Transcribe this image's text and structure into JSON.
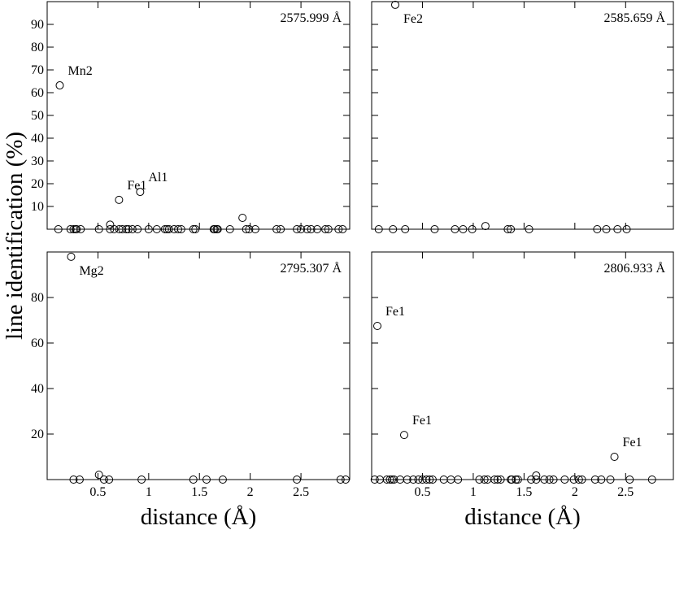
{
  "chart_data": [
    {
      "type": "scatter",
      "title": "2575.999 Å",
      "ylabel": "line identification (%)",
      "xlim": [
        0,
        2.98
      ],
      "ylim": [
        0,
        100
      ],
      "xticks": [
        0.5,
        1,
        1.5,
        2,
        2.5
      ],
      "yticks": [
        10,
        20,
        30,
        40,
        50,
        60,
        70,
        80,
        90
      ],
      "xticklabels": false,
      "yticklabels": true,
      "color": "#000000",
      "x": [
        0.124,
        0.708,
        0.916,
        0.62,
        1.924,
        0.11,
        0.23,
        0.26,
        0.28,
        0.29,
        0.33,
        0.51,
        0.62,
        0.66,
        0.71,
        0.74,
        0.78,
        0.8,
        0.84,
        0.89,
        1.0,
        1.08,
        1.16,
        1.18,
        1.2,
        1.25,
        1.29,
        1.32,
        1.44,
        1.46,
        1.64,
        1.65,
        1.67,
        1.68,
        1.8,
        1.96,
        1.99,
        2.05,
        2.26,
        2.3,
        2.46,
        2.5,
        2.56,
        2.6,
        2.66,
        2.74,
        2.77,
        2.87,
        2.91
      ],
      "values": [
        63.2,
        12.9,
        16.4,
        2,
        5,
        0,
        0,
        0,
        0,
        0,
        0,
        0,
        0,
        0,
        0,
        0,
        0,
        0,
        0,
        0,
        0,
        0,
        0,
        0,
        0,
        0,
        0,
        0,
        0,
        0,
        0,
        0,
        0,
        0,
        0,
        0,
        0,
        0,
        0,
        0,
        0,
        0,
        0,
        0,
        0,
        0,
        0,
        0,
        0
      ],
      "point_labels": [
        "Mn2",
        "Fe1",
        "Al1",
        null,
        null,
        null,
        null,
        null,
        null,
        null,
        null,
        null,
        null,
        null,
        null,
        null,
        null,
        null,
        null,
        null,
        null,
        null,
        null,
        null,
        null,
        null,
        null,
        null,
        null,
        null,
        null,
        null,
        null,
        null,
        null,
        null,
        null,
        null,
        null,
        null,
        null,
        null,
        null,
        null,
        null,
        null,
        null,
        null,
        null
      ]
    },
    {
      "type": "scatter",
      "title": "2585.659 Å",
      "xlim": [
        0,
        2.97
      ],
      "ylim": [
        0,
        100
      ],
      "xticks": [
        0.5,
        1,
        1.5,
        2,
        2.5
      ],
      "yticks": [
        10,
        20,
        30,
        40,
        50,
        60,
        70,
        80,
        90
      ],
      "xticklabels": false,
      "yticklabels": false,
      "color": "#000000",
      "x": [
        0.232,
        1.12,
        0.07,
        0.21,
        0.33,
        0.62,
        0.82,
        0.9,
        0.99,
        1.34,
        1.37,
        1.55,
        2.22,
        2.31,
        2.42,
        2.51
      ],
      "values": [
        98.6,
        1.4,
        0,
        0,
        0,
        0,
        0,
        0,
        0,
        0,
        0,
        0,
        0,
        0,
        0,
        0
      ],
      "point_labels": [
        "Fe2",
        null,
        null,
        null,
        null,
        null,
        null,
        null,
        null,
        null,
        null,
        null,
        null,
        null,
        null,
        null
      ]
    },
    {
      "type": "scatter",
      "title": "2795.307 Å",
      "xlabel": "distance (Å)",
      "xlim": [
        0,
        2.98
      ],
      "ylim": [
        0,
        100
      ],
      "xticks": [
        0.5,
        1,
        1.5,
        2,
        2.5
      ],
      "yticks": [
        20,
        40,
        60,
        80
      ],
      "xticklabels": true,
      "yticklabels": true,
      "color": "#000000",
      "x": [
        0.236,
        0.51,
        0.26,
        0.32,
        0.56,
        0.61,
        0.93,
        1.44,
        1.57,
        1.73,
        2.46,
        2.89,
        2.94
      ],
      "values": [
        97.9,
        2.1,
        0,
        0,
        0,
        0,
        0,
        0,
        0,
        0,
        0,
        0,
        0
      ],
      "point_labels": [
        "Mg2",
        null,
        null,
        null,
        null,
        null,
        null,
        null,
        null,
        null,
        null,
        null,
        null
      ]
    },
    {
      "type": "scatter",
      "title": "2806.933 Å",
      "xlabel": "distance (Å)",
      "xlim": [
        0,
        2.97
      ],
      "ylim": [
        0,
        100
      ],
      "xticks": [
        0.5,
        1,
        1.5,
        2,
        2.5
      ],
      "yticks": [
        20,
        40,
        60,
        80
      ],
      "xticklabels": true,
      "yticklabels": false,
      "color": "#000000",
      "x": [
        0.056,
        0.32,
        2.39,
        1.62,
        0.03,
        0.08,
        0.15,
        0.18,
        0.2,
        0.22,
        0.28,
        0.35,
        0.41,
        0.46,
        0.5,
        0.54,
        0.57,
        0.6,
        0.71,
        0.78,
        0.85,
        1.06,
        1.11,
        1.14,
        1.21,
        1.24,
        1.27,
        1.37,
        1.38,
        1.42,
        1.44,
        1.57,
        1.62,
        1.7,
        1.75,
        1.79,
        1.9,
        1.99,
        2.04,
        2.07,
        2.2,
        2.26,
        2.35,
        2.54,
        2.76
      ],
      "values": [
        67.5,
        19.6,
        10,
        1.8,
        0,
        0,
        0,
        0,
        0,
        0,
        0,
        0,
        0,
        0,
        0,
        0,
        0,
        0,
        0,
        0,
        0,
        0,
        0,
        0,
        0,
        0,
        0,
        0,
        0,
        0,
        0,
        0,
        0,
        0,
        0,
        0,
        0,
        0,
        0,
        0,
        0,
        0,
        0,
        0,
        0
      ],
      "point_labels": [
        "Fe1",
        "Fe1",
        "Fe1",
        null,
        null,
        null,
        null,
        null,
        null,
        null,
        null,
        null,
        null,
        null,
        null,
        null,
        null,
        null,
        null,
        null,
        null,
        null,
        null,
        null,
        null,
        null,
        null,
        null,
        null,
        null,
        null,
        null,
        null,
        null,
        null,
        null,
        null,
        null,
        null,
        null,
        null,
        null,
        null,
        null,
        null
      ]
    }
  ]
}
